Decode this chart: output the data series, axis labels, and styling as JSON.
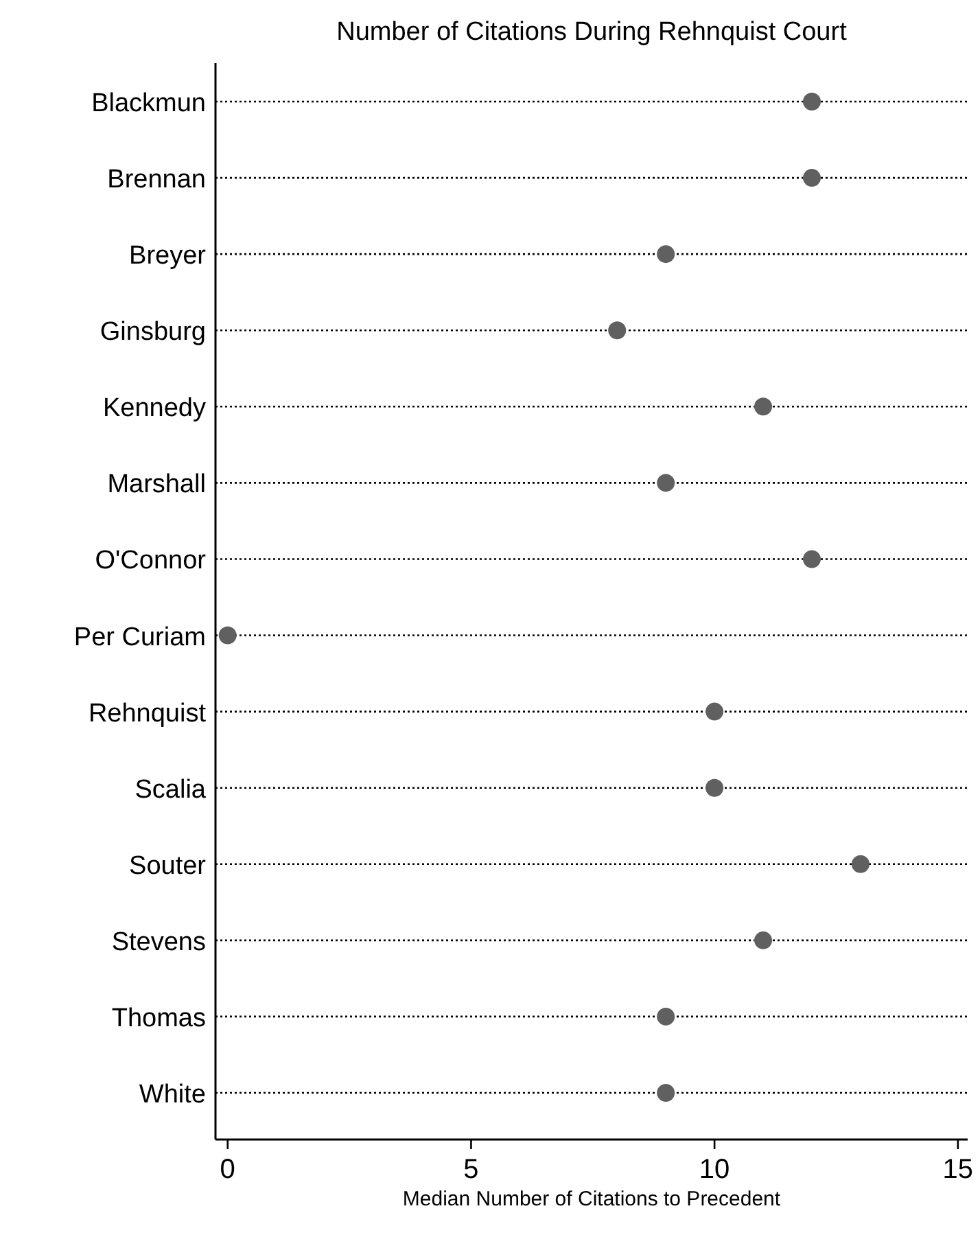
{
  "chart_data": {
    "type": "scatter",
    "orientation": "horizontal",
    "title": "Number of Citations During Rehnquist Court",
    "xlabel": "Median Number of Citations to Precedent",
    "categories": [
      "Blackmun",
      "Brennan",
      "Breyer",
      "Ginsburg",
      "Kennedy",
      "Marshall",
      "O'Connor",
      "Per Curiam",
      "Rehnquist",
      "Scalia",
      "Souter",
      "Stevens",
      "Thomas",
      "White"
    ],
    "values": [
      12,
      12,
      9,
      8,
      11,
      9,
      12,
      0,
      10,
      10,
      13,
      11,
      9,
      9
    ],
    "color": "#606060",
    "marker": "circle",
    "grid": "y",
    "xlim": [
      -0.25,
      15.2
    ],
    "xticks": [
      0,
      5,
      10,
      15
    ]
  }
}
